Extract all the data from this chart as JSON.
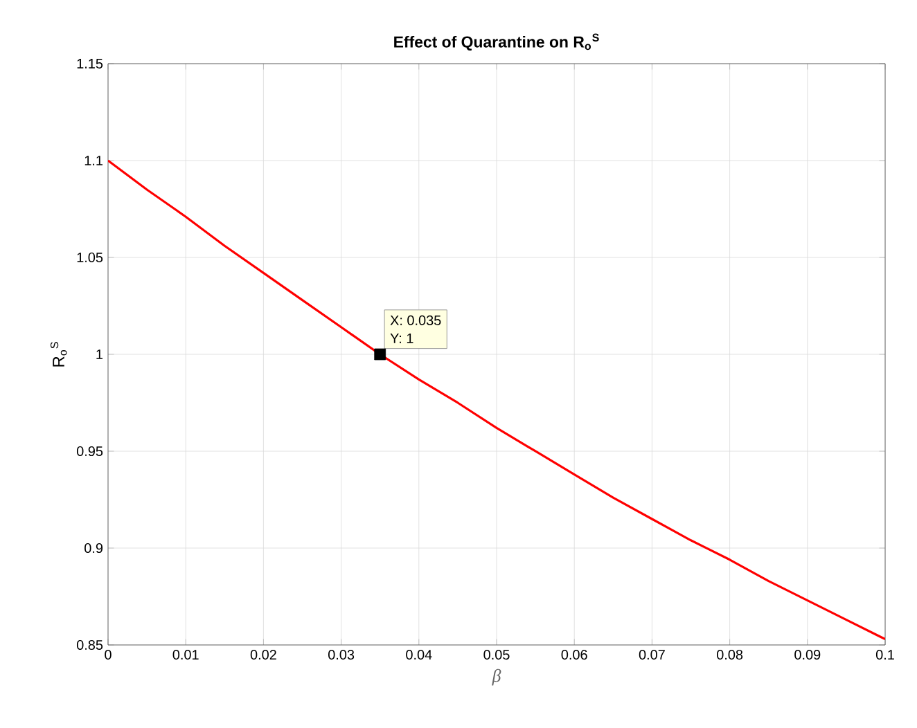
{
  "chart_data": {
    "type": "line",
    "title": "**Effect of Quarantine on R$_{o}$$^{S}$**",
    "xlabel": "β",
    "ylabel": "R$_{o}$$^{S}$",
    "x": [
      0,
      0.005,
      0.01,
      0.015,
      0.02,
      0.025,
      0.03,
      0.035,
      0.04,
      0.045,
      0.05,
      0.055,
      0.06,
      0.065,
      0.07,
      0.075,
      0.08,
      0.085,
      0.09,
      0.095,
      0.1
    ],
    "series": [
      {
        "color": "#ff0000",
        "values": [
          1.1,
          1.085,
          1.071,
          1.056,
          1.042,
          1.028,
          1.014,
          1.0,
          0.987,
          0.975,
          0.962,
          0.95,
          0.938,
          0.926,
          0.915,
          0.904,
          0.894,
          0.883,
          0.873,
          0.863,
          0.853
        ]
      },
      {
        "type": "scatter",
        "marker": "square",
        "color": "#000000",
        "x": [
          0.035
        ],
        "values": [
          1
        ]
      }
    ],
    "annotations": [
      {
        "text": "X: 0.035",
        "x": 0.035,
        "y": 1
      },
      {
        "text": "Y: 1",
        "x": 0.035,
        "y": 1
      }
    ],
    "xlim": [
      0,
      0.1
    ],
    "ylim": [
      0.85,
      1.15
    ],
    "xticks": [
      0,
      0.01,
      0.02,
      0.03,
      0.04,
      0.05,
      0.06,
      0.07,
      0.08,
      0.09,
      0.1
    ],
    "yticks": [
      0.85,
      0.9,
      0.95,
      1,
      1.05,
      1.1,
      1.15
    ],
    "grid": true
  }
}
